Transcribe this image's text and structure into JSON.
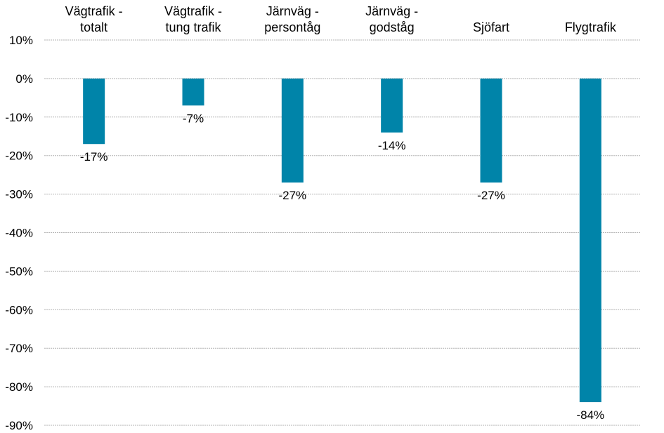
{
  "chart_data": {
    "type": "bar",
    "categories": [
      [
        "Vägtrafik -",
        "totalt"
      ],
      [
        "Vägtrafik -",
        "tung trafik"
      ],
      [
        "Järnväg -",
        "persontåg"
      ],
      [
        "Järnväg -",
        "godståg"
      ],
      [
        "Sjöfart"
      ],
      [
        "Flygtrafik"
      ]
    ],
    "values": [
      -17,
      -7,
      -27,
      -14,
      -27,
      -84
    ],
    "data_labels": [
      "-17%",
      "-7%",
      "-27%",
      "-14%",
      "-27%",
      "-84%"
    ],
    "title": "",
    "xlabel": "",
    "ylabel": "",
    "ylim": [
      -90,
      10
    ],
    "yticks": [
      10,
      0,
      -10,
      -20,
      -30,
      -40,
      -50,
      -60,
      -70,
      -80,
      -90
    ],
    "ytick_labels": [
      "10%",
      "0%",
      "-10%",
      "-20%",
      "-30%",
      "-40%",
      "-50%",
      "-60%",
      "-70%",
      "-80%",
      "-90%"
    ],
    "grid": true,
    "category_axis_position": "top",
    "bar_color": "#0084a9"
  }
}
